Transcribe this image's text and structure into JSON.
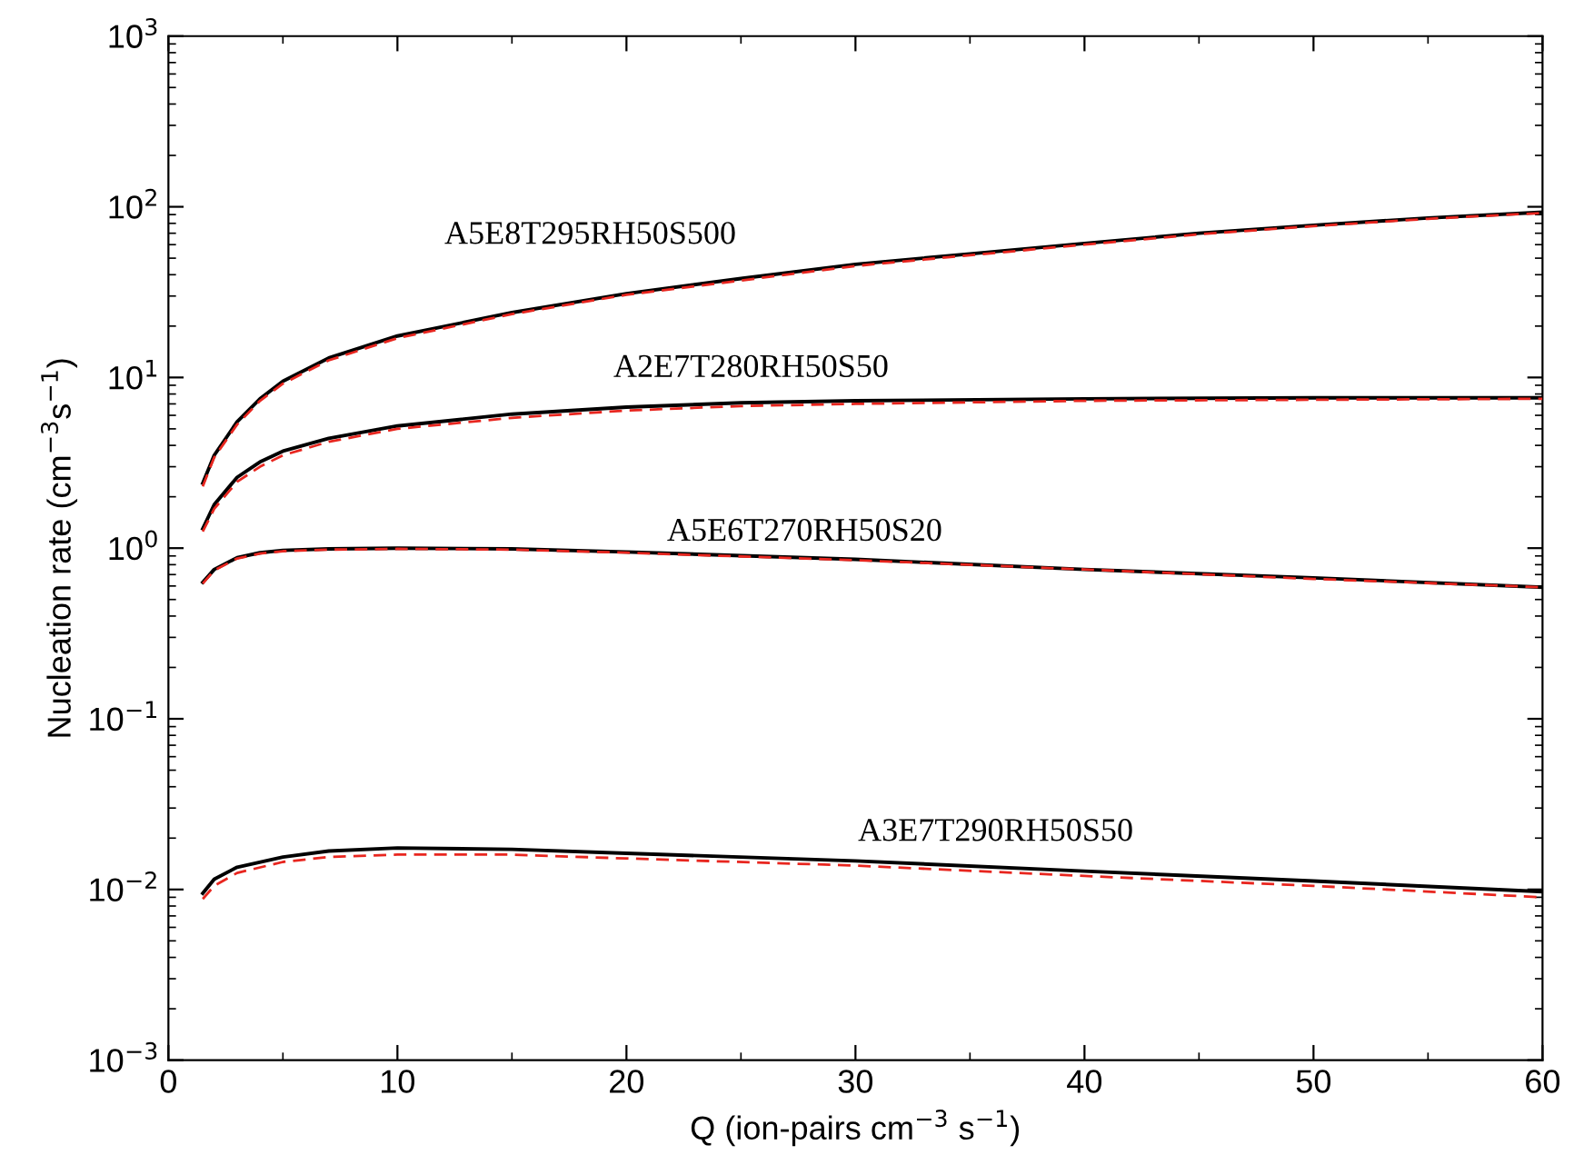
{
  "chart_data": {
    "type": "line",
    "xlabel": "Q (ion-pairs cm$^{−3}$ s$^{−1}$)",
    "ylabel": "Nucleation rate (cm$^{−3}$s$^{−1}$)",
    "log": "y",
    "xlim": [
      0,
      60
    ],
    "xticks": [
      0,
      10,
      20,
      30,
      40,
      50,
      60
    ],
    "ylim": [
      0.001,
      1000
    ],
    "yticks": [
      {
        "value": 0.001,
        "label": "10$^{−3}$"
      },
      {
        "value": 0.01,
        "label": "10$^{−2}$"
      },
      {
        "value": 0.1,
        "label": "10$^{−1}$"
      },
      {
        "value": 1,
        "label": "10$^{0}$"
      },
      {
        "value": 10,
        "label": "10$^{1}$"
      },
      {
        "value": 100,
        "label": "10$^{2}$"
      },
      {
        "value": 1000,
        "label": "10$^{3}$"
      }
    ],
    "grid": false,
    "legend": false,
    "marker": "none",
    "series": [
      {
        "color": "#000000",
        "line_style": "solid",
        "x": [
          1.5,
          2,
          3,
          4,
          5,
          7,
          10,
          15,
          20,
          25,
          30,
          35,
          40,
          45,
          50,
          55,
          60
        ],
        "values": [
          2.4,
          3.5,
          5.5,
          7.5,
          9.5,
          13,
          17.5,
          24,
          31,
          38,
          46,
          53,
          61,
          70,
          78,
          86,
          93
        ]
      },
      {
        "color": "#e8261f",
        "line_style": "dashed",
        "x": [
          1.5,
          2,
          3,
          4,
          5,
          7,
          10,
          15,
          20,
          25,
          30,
          35,
          40,
          45,
          50,
          55,
          60
        ],
        "values": [
          2.3,
          3.4,
          5.3,
          7.3,
          9.2,
          12.6,
          17,
          23.5,
          30.5,
          37,
          45,
          52,
          60,
          69,
          77,
          85,
          92
        ]
      },
      {
        "color": "#000000",
        "line_style": "solid",
        "x": [
          1.5,
          2,
          3,
          4,
          5,
          7,
          10,
          15,
          20,
          25,
          30,
          40,
          50,
          60
        ],
        "values": [
          1.3,
          1.8,
          2.6,
          3.2,
          3.7,
          4.4,
          5.2,
          6.1,
          6.7,
          7.1,
          7.3,
          7.5,
          7.6,
          7.6
        ]
      },
      {
        "color": "#e8261f",
        "line_style": "dashed",
        "x": [
          1.5,
          2,
          3,
          4,
          5,
          7,
          10,
          15,
          20,
          25,
          30,
          40,
          50,
          60
        ],
        "values": [
          1.25,
          1.7,
          2.45,
          3.0,
          3.5,
          4.2,
          5.0,
          5.8,
          6.4,
          6.8,
          7.0,
          7.3,
          7.4,
          7.5
        ]
      },
      {
        "color": "#000000",
        "line_style": "solid",
        "x": [
          1.5,
          2,
          3,
          4,
          5,
          7,
          10,
          15,
          20,
          30,
          40,
          50,
          60
        ],
        "values": [
          0.63,
          0.75,
          0.88,
          0.94,
          0.97,
          0.99,
          1.0,
          0.99,
          0.95,
          0.86,
          0.75,
          0.67,
          0.59
        ]
      },
      {
        "color": "#e8261f",
        "line_style": "dashed",
        "x": [
          1.5,
          2,
          3,
          4,
          5,
          7,
          10,
          15,
          20,
          30,
          40,
          50,
          60
        ],
        "values": [
          0.62,
          0.74,
          0.87,
          0.93,
          0.96,
          0.98,
          0.99,
          0.98,
          0.94,
          0.85,
          0.75,
          0.66,
          0.59
        ]
      },
      {
        "color": "#000000",
        "line_style": "solid",
        "x": [
          1.5,
          2,
          3,
          5,
          7,
          10,
          15,
          20,
          30,
          40,
          50,
          60
        ],
        "values": [
          0.0095,
          0.0115,
          0.0135,
          0.0155,
          0.0168,
          0.0175,
          0.0172,
          0.0163,
          0.0147,
          0.0128,
          0.0112,
          0.0097
        ]
      },
      {
        "color": "#e8261f",
        "line_style": "dashed",
        "x": [
          1.5,
          2,
          3,
          5,
          7,
          10,
          15,
          20,
          30,
          40,
          50,
          60
        ],
        "values": [
          0.0088,
          0.0105,
          0.0125,
          0.0145,
          0.0155,
          0.016,
          0.016,
          0.0152,
          0.0138,
          0.012,
          0.0105,
          0.009
        ]
      }
    ],
    "annotations": [
      "A5E8T295RH50S500",
      "A2E7T280RH50S50",
      "A5E6T270RH50S20",
      "A3E7T290RH50S50"
    ]
  }
}
